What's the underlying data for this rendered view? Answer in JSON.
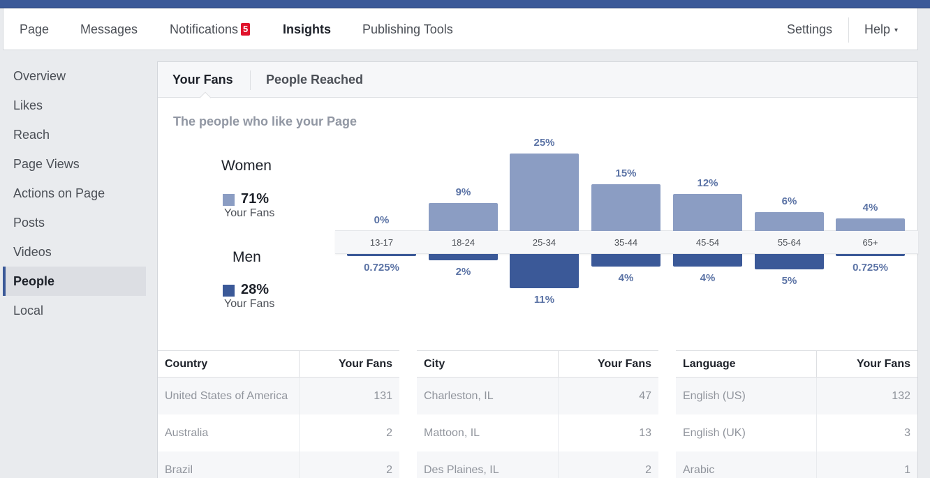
{
  "nav": {
    "page": "Page",
    "messages": "Messages",
    "notifications": "Notifications",
    "notifications_badge": "5",
    "insights": "Insights",
    "publishing_tools": "Publishing Tools",
    "settings": "Settings",
    "help": "Help",
    "help_caret": "▾"
  },
  "sidebar": {
    "items": [
      {
        "label": "Overview"
      },
      {
        "label": "Likes"
      },
      {
        "label": "Reach"
      },
      {
        "label": "Page Views"
      },
      {
        "label": "Actions on Page"
      },
      {
        "label": "Posts"
      },
      {
        "label": "Videos"
      },
      {
        "label": "People",
        "active": true
      },
      {
        "label": "Local"
      }
    ]
  },
  "tabs": {
    "your_fans": "Your Fans",
    "people_reached": "People Reached"
  },
  "section_title": "The people who like your Page",
  "gender": {
    "women": {
      "title": "Women",
      "pct": "71%",
      "sub": "Your Fans",
      "color": "#8b9dc3"
    },
    "men": {
      "title": "Men",
      "pct": "28%",
      "sub": "Your Fans",
      "color": "#3b5998"
    }
  },
  "chart_data": {
    "type": "bar",
    "categories": [
      "13-17",
      "18-24",
      "25-34",
      "35-44",
      "45-54",
      "55-64",
      "65+"
    ],
    "series": [
      {
        "name": "Women",
        "values": [
          0,
          9,
          25,
          15,
          12,
          6,
          4
        ],
        "labels": [
          "0%",
          "9%",
          "25%",
          "15%",
          "12%",
          "6%",
          "4%"
        ],
        "color": "#8b9dc3"
      },
      {
        "name": "Men",
        "values": [
          0.725,
          2,
          11,
          4,
          4,
          5,
          0.725
        ],
        "labels": [
          "0.725%",
          "2%",
          "11%",
          "4%",
          "4%",
          "5%",
          "0.725%"
        ],
        "color": "#3b5998"
      }
    ]
  },
  "tables": [
    {
      "col1": "Country",
      "col2": "Your Fans",
      "rows": [
        {
          "name": "United States of America",
          "value": "131"
        },
        {
          "name": "Australia",
          "value": "2"
        },
        {
          "name": "Brazil",
          "value": "2"
        }
      ]
    },
    {
      "col1": "City",
      "col2": "Your Fans",
      "rows": [
        {
          "name": "Charleston, IL",
          "value": "47"
        },
        {
          "name": "Mattoon, IL",
          "value": "13"
        },
        {
          "name": "Des Plaines, IL",
          "value": "2"
        }
      ]
    },
    {
      "col1": "Language",
      "col2": "Your Fans",
      "rows": [
        {
          "name": "English (US)",
          "value": "132"
        },
        {
          "name": "English (UK)",
          "value": "3"
        },
        {
          "name": "Arabic",
          "value": "1"
        }
      ]
    }
  ]
}
